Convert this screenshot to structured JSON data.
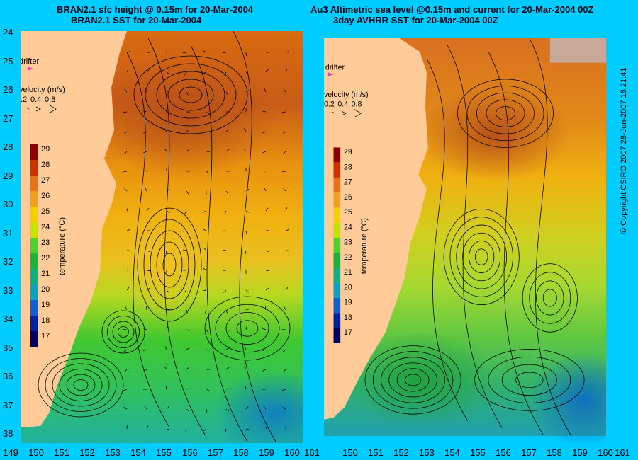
{
  "left_panel": {
    "title_line1": "BRAN2.1 sfc height @ 0.15m for 20-Mar-2004",
    "title_line2": "BRAN2.1 SST for 20-Mar-2004"
  },
  "right_panel": {
    "title_line1": "Au3 Altimetric sea level  @0.15m and current for 20-Mar-2004 00Z",
    "title_line2": "3day AVHRR SST for 20-Mar-2004 00Z"
  },
  "latitude_labels": [
    "24",
    "25",
    "26",
    "27",
    "28",
    "29",
    "30",
    "31",
    "32",
    "33",
    "34",
    "35",
    "36",
    "37",
    "38"
  ],
  "longitude_labels": [
    "149",
    "150",
    "151",
    "152",
    "153",
    "154",
    "155",
    "156",
    "157",
    "158",
    "159",
    "160",
    "161"
  ],
  "legend": {
    "drifter_label": "drifter",
    "velocity_title": "velocity (m/s)",
    "velocity_scale": [
      "0.2",
      "0.4",
      "0.8"
    ],
    "colorbar_title": "temperature (°C)",
    "colorbar_ticks": [
      "29",
      "28",
      "27",
      "26",
      "25",
      "24",
      "23",
      "22",
      "21",
      "20",
      "19",
      "18",
      "17"
    ]
  },
  "colors": {
    "background": "#00ccff",
    "land": "#ffcc99",
    "drifter": "#ff33cc",
    "colorbar": [
      "#8b0000",
      "#cc3300",
      "#e6731a",
      "#f0a020",
      "#f5d000",
      "#c8e000",
      "#50d030",
      "#20b040",
      "#10b080",
      "#10a0c0",
      "#1060d0",
      "#0020a0",
      "#000060"
    ]
  },
  "copyright": "© Copyright CSIRO 2007    28-Jun-2007 16:21:41"
}
